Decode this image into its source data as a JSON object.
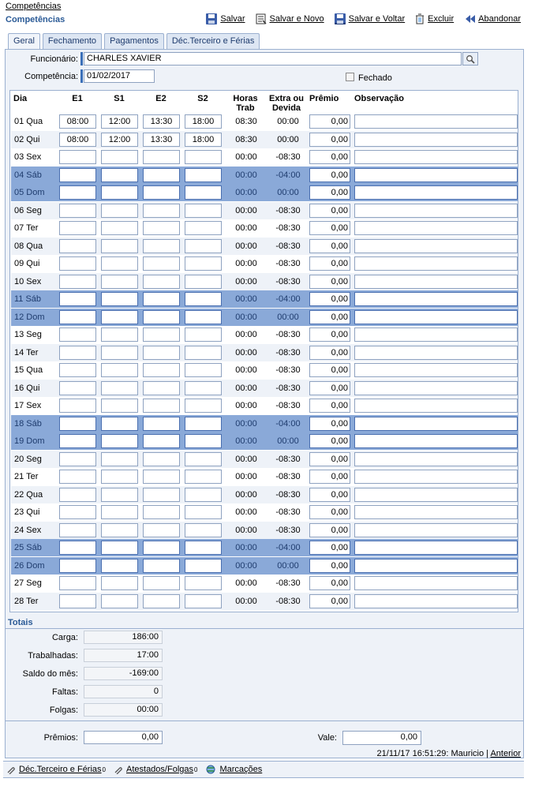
{
  "breadcrumb": "Competências",
  "page_title": "Competências",
  "toolbar": {
    "save": "Salvar",
    "save_new": "Salvar e Novo",
    "save_back": "Salvar e Voltar",
    "delete": "Excluir",
    "abandon": "Abandonar"
  },
  "tabs": [
    "Geral",
    "Fechamento",
    "Pagamentos",
    "Déc.Terceiro e Férias"
  ],
  "form": {
    "funcionario_label": "Funcionário:",
    "funcionario_value": "CHARLES XAVIER",
    "competencia_label": "Competência:",
    "competencia_value": "01/02/2017",
    "fechado_label": "Fechado"
  },
  "grid": {
    "headers": {
      "dia": "Dia",
      "e1": "E1",
      "s1": "S1",
      "e2": "E2",
      "s2": "S2",
      "horas_1": "Horas",
      "horas_2": "Trab",
      "extra_1": "Extra ou",
      "extra_2": "Devida",
      "premio": "Prêmio",
      "obs": "Observação"
    },
    "rows": [
      {
        "dia": "01 Qua",
        "e1": "08:00",
        "s1": "12:00",
        "e2": "13:30",
        "s2": "18:00",
        "horas": "08:30",
        "extra": "00:00",
        "premio": "0,00",
        "weekend": false
      },
      {
        "dia": "02 Qui",
        "e1": "08:00",
        "s1": "12:00",
        "e2": "13:30",
        "s2": "18:00",
        "horas": "08:30",
        "extra": "00:00",
        "premio": "0,00",
        "weekend": false
      },
      {
        "dia": "03 Sex",
        "e1": "",
        "s1": "",
        "e2": "",
        "s2": "",
        "horas": "00:00",
        "extra": "-08:30",
        "premio": "0,00",
        "weekend": false
      },
      {
        "dia": "04 Sáb",
        "e1": "",
        "s1": "",
        "e2": "",
        "s2": "",
        "horas": "00:00",
        "extra": "-04:00",
        "premio": "0,00",
        "weekend": true
      },
      {
        "dia": "05 Dom",
        "e1": "",
        "s1": "",
        "e2": "",
        "s2": "",
        "horas": "00:00",
        "extra": "00:00",
        "premio": "0,00",
        "weekend": true
      },
      {
        "dia": "06 Seg",
        "e1": "",
        "s1": "",
        "e2": "",
        "s2": "",
        "horas": "00:00",
        "extra": "-08:30",
        "premio": "0,00",
        "weekend": false
      },
      {
        "dia": "07 Ter",
        "e1": "",
        "s1": "",
        "e2": "",
        "s2": "",
        "horas": "00:00",
        "extra": "-08:30",
        "premio": "0,00",
        "weekend": false
      },
      {
        "dia": "08 Qua",
        "e1": "",
        "s1": "",
        "e2": "",
        "s2": "",
        "horas": "00:00",
        "extra": "-08:30",
        "premio": "0,00",
        "weekend": false
      },
      {
        "dia": "09 Qui",
        "e1": "",
        "s1": "",
        "e2": "",
        "s2": "",
        "horas": "00:00",
        "extra": "-08:30",
        "premio": "0,00",
        "weekend": false
      },
      {
        "dia": "10 Sex",
        "e1": "",
        "s1": "",
        "e2": "",
        "s2": "",
        "horas": "00:00",
        "extra": "-08:30",
        "premio": "0,00",
        "weekend": false
      },
      {
        "dia": "11 Sáb",
        "e1": "",
        "s1": "",
        "e2": "",
        "s2": "",
        "horas": "00:00",
        "extra": "-04:00",
        "premio": "0,00",
        "weekend": true
      },
      {
        "dia": "12 Dom",
        "e1": "",
        "s1": "",
        "e2": "",
        "s2": "",
        "horas": "00:00",
        "extra": "00:00",
        "premio": "0,00",
        "weekend": true
      },
      {
        "dia": "13 Seg",
        "e1": "",
        "s1": "",
        "e2": "",
        "s2": "",
        "horas": "00:00",
        "extra": "-08:30",
        "premio": "0,00",
        "weekend": false
      },
      {
        "dia": "14 Ter",
        "e1": "",
        "s1": "",
        "e2": "",
        "s2": "",
        "horas": "00:00",
        "extra": "-08:30",
        "premio": "0,00",
        "weekend": false
      },
      {
        "dia": "15 Qua",
        "e1": "",
        "s1": "",
        "e2": "",
        "s2": "",
        "horas": "00:00",
        "extra": "-08:30",
        "premio": "0,00",
        "weekend": false
      },
      {
        "dia": "16 Qui",
        "e1": "",
        "s1": "",
        "e2": "",
        "s2": "",
        "horas": "00:00",
        "extra": "-08:30",
        "premio": "0,00",
        "weekend": false
      },
      {
        "dia": "17 Sex",
        "e1": "",
        "s1": "",
        "e2": "",
        "s2": "",
        "horas": "00:00",
        "extra": "-08:30",
        "premio": "0,00",
        "weekend": false
      },
      {
        "dia": "18 Sáb",
        "e1": "",
        "s1": "",
        "e2": "",
        "s2": "",
        "horas": "00:00",
        "extra": "-04:00",
        "premio": "0,00",
        "weekend": true
      },
      {
        "dia": "19 Dom",
        "e1": "",
        "s1": "",
        "e2": "",
        "s2": "",
        "horas": "00:00",
        "extra": "00:00",
        "premio": "0,00",
        "weekend": true
      },
      {
        "dia": "20 Seg",
        "e1": "",
        "s1": "",
        "e2": "",
        "s2": "",
        "horas": "00:00",
        "extra": "-08:30",
        "premio": "0,00",
        "weekend": false
      },
      {
        "dia": "21 Ter",
        "e1": "",
        "s1": "",
        "e2": "",
        "s2": "",
        "horas": "00:00",
        "extra": "-08:30",
        "premio": "0,00",
        "weekend": false
      },
      {
        "dia": "22 Qua",
        "e1": "",
        "s1": "",
        "e2": "",
        "s2": "",
        "horas": "00:00",
        "extra": "-08:30",
        "premio": "0,00",
        "weekend": false
      },
      {
        "dia": "23 Qui",
        "e1": "",
        "s1": "",
        "e2": "",
        "s2": "",
        "horas": "00:00",
        "extra": "-08:30",
        "premio": "0,00",
        "weekend": false
      },
      {
        "dia": "24 Sex",
        "e1": "",
        "s1": "",
        "e2": "",
        "s2": "",
        "horas": "00:00",
        "extra": "-08:30",
        "premio": "0,00",
        "weekend": false
      },
      {
        "dia": "25 Sáb",
        "e1": "",
        "s1": "",
        "e2": "",
        "s2": "",
        "horas": "00:00",
        "extra": "-04:00",
        "premio": "0,00",
        "weekend": true
      },
      {
        "dia": "26 Dom",
        "e1": "",
        "s1": "",
        "e2": "",
        "s2": "",
        "horas": "00:00",
        "extra": "00:00",
        "premio": "0,00",
        "weekend": true
      },
      {
        "dia": "27 Seg",
        "e1": "",
        "s1": "",
        "e2": "",
        "s2": "",
        "horas": "00:00",
        "extra": "-08:30",
        "premio": "0,00",
        "weekend": false
      },
      {
        "dia": "28 Ter",
        "e1": "",
        "s1": "",
        "e2": "",
        "s2": "",
        "horas": "00:00",
        "extra": "-08:30",
        "premio": "0,00",
        "weekend": false
      }
    ]
  },
  "totais": {
    "title": "Totais",
    "carga_label": "Carga:",
    "carga": "186:00",
    "trabalhadas_label": "Trabalhadas:",
    "trabalhadas": "17:00",
    "saldo_label": "Saldo do mês:",
    "saldo": "-169:00",
    "faltas_label": "Faltas:",
    "faltas": "0",
    "folgas_label": "Folgas:",
    "folgas": "00:00",
    "premios_label": "Prêmios:",
    "premios": "0,00",
    "vale_label": "Vale:",
    "vale": "0,00"
  },
  "status": {
    "text": "21/11/17 16:51:29: Mauricio |",
    "link": "Anterior"
  },
  "footer": {
    "dec": "Déc.Terceiro e Férias",
    "dec_count": "0",
    "atestados": "Atestados/Folgas",
    "atestados_count": "0",
    "marcacoes": "Marcações"
  },
  "colors": {
    "accent": "#2a5a96",
    "weekend_row": "#8aa9d8",
    "panel_bg": "#eef2f8"
  }
}
